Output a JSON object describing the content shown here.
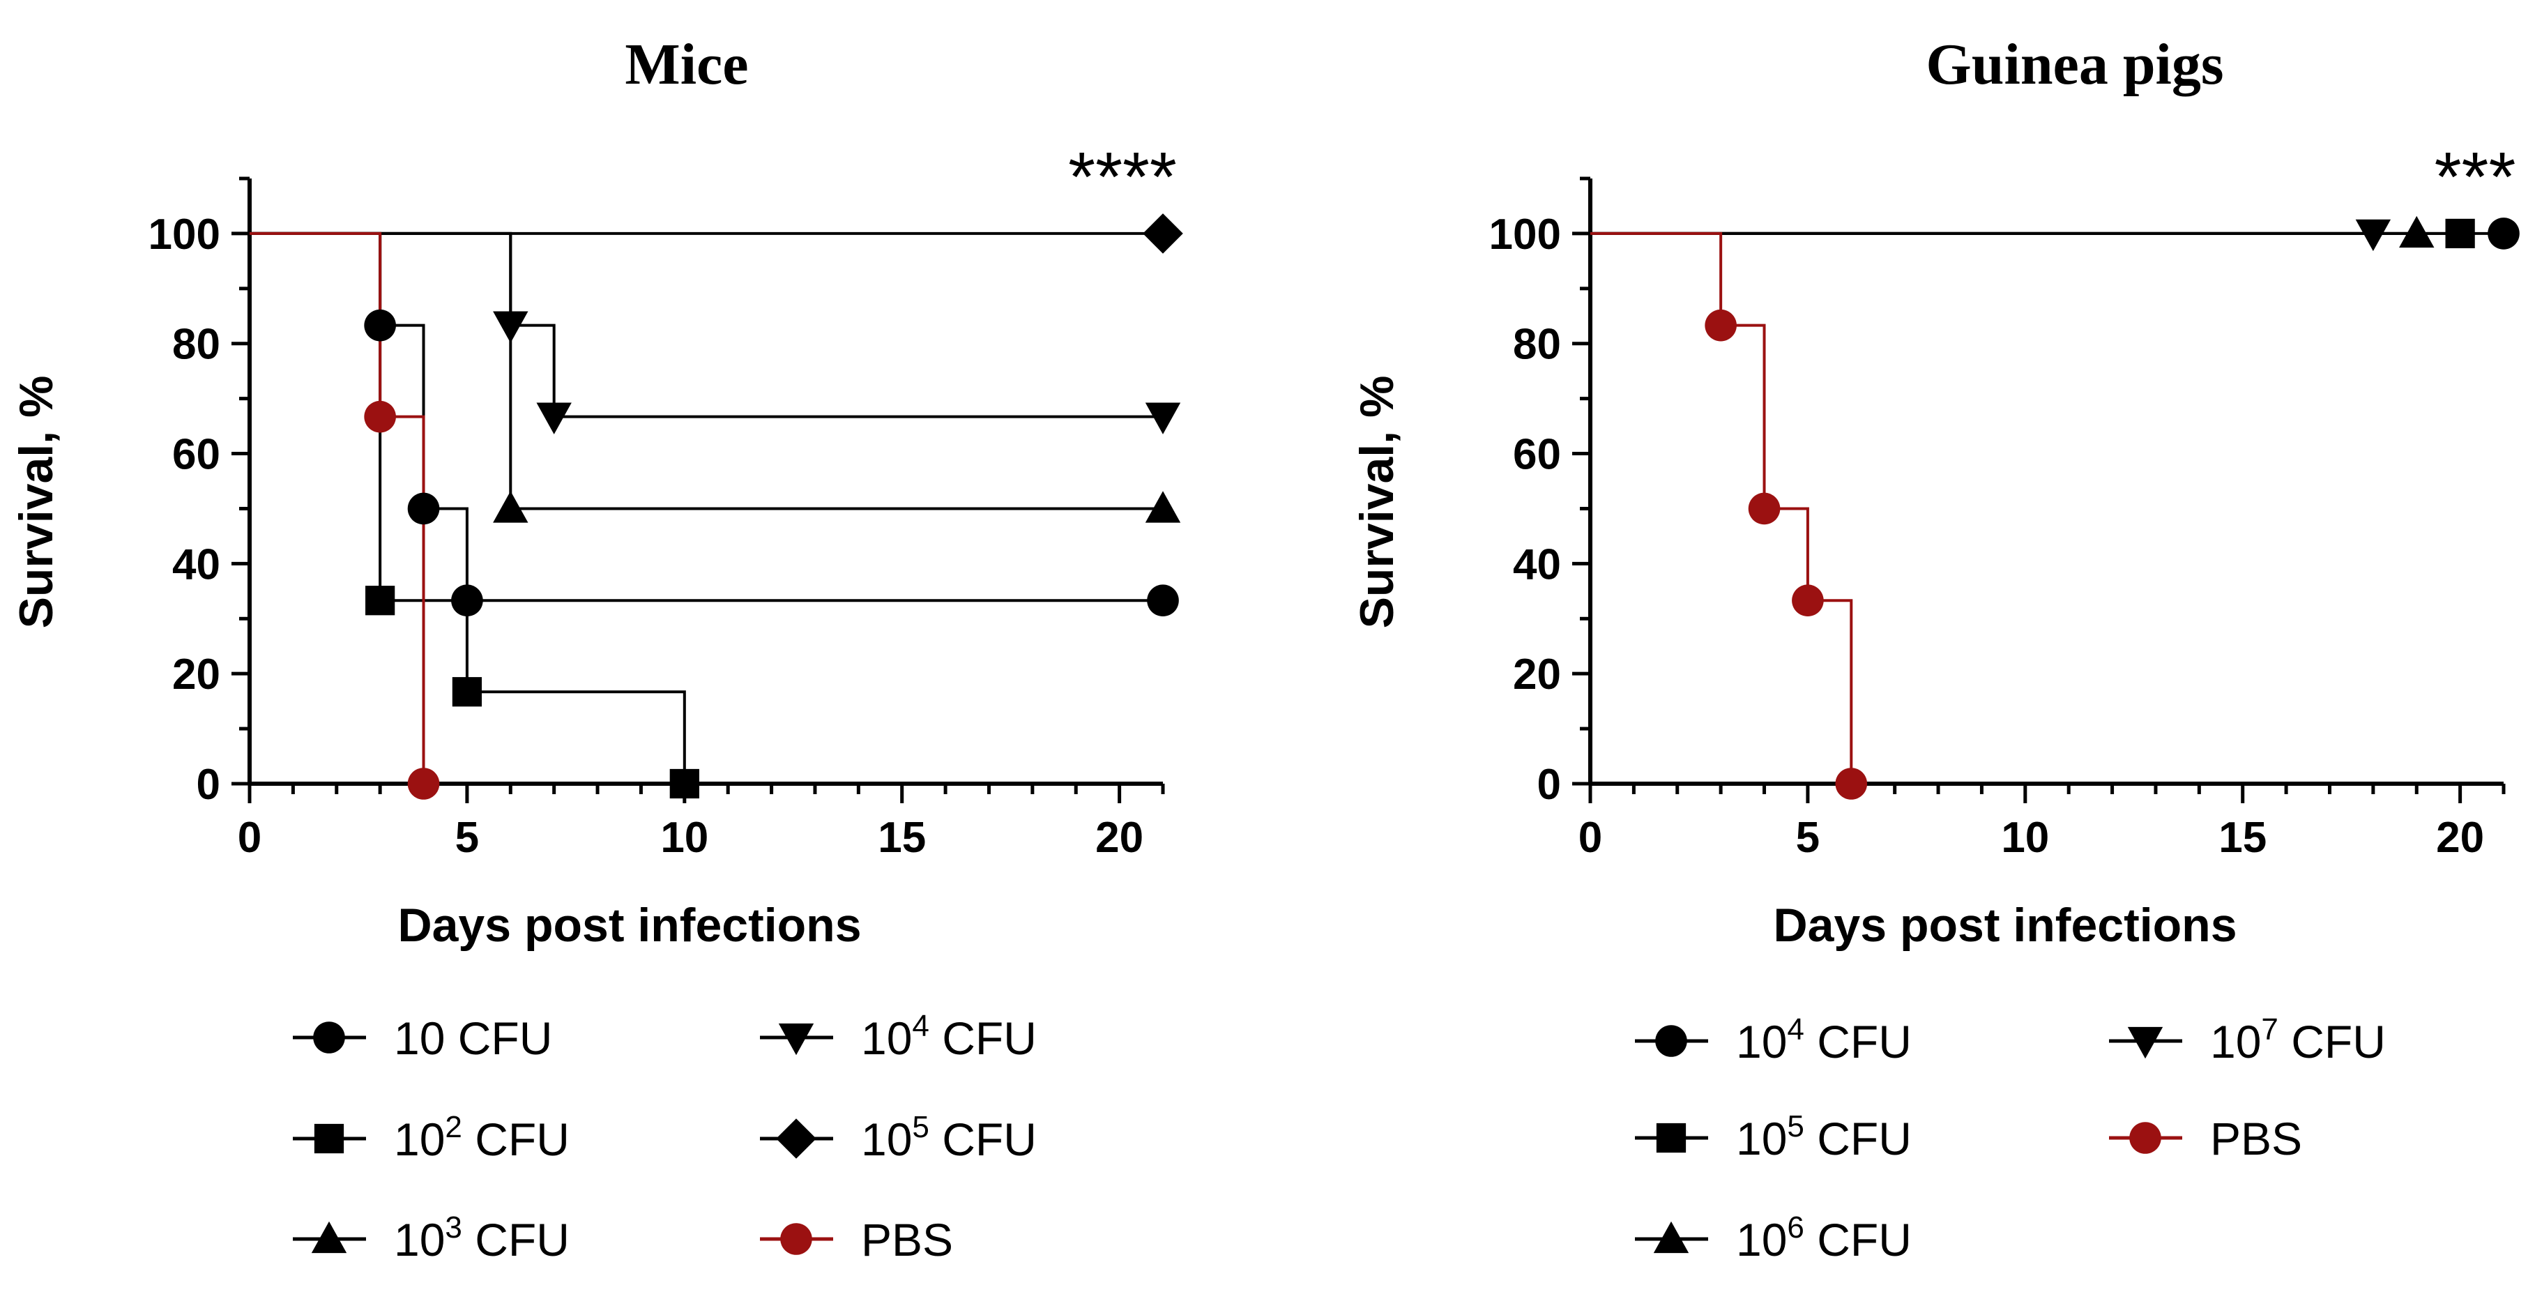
{
  "chart_data": [
    {
      "type": "line",
      "subtype": "kaplan-meier survival",
      "title": "Mice",
      "xlabel": "Days post infections",
      "ylabel": "Survival, %",
      "xlim": [
        0,
        21
      ],
      "ylim": [
        0,
        110
      ],
      "xticks": [
        0,
        5,
        10,
        15,
        20
      ],
      "yticks": [
        0,
        20,
        40,
        60,
        80,
        100
      ],
      "significance": "****",
      "series": [
        {
          "name": "10 CFU",
          "base": "10",
          "exp": "",
          "unit": " CFU",
          "marker": "circle",
          "color": "#000000",
          "steps": [
            [
              0,
              100
            ],
            [
              3,
              83.3
            ],
            [
              4,
              50
            ],
            [
              5,
              33.3
            ],
            [
              21,
              33.3
            ]
          ],
          "markers": [
            [
              3,
              83.3
            ],
            [
              4,
              50
            ],
            [
              5,
              33.3
            ],
            [
              21,
              33.3
            ]
          ]
        },
        {
          "name": "10^2 CFU",
          "base": "10",
          "exp": "2",
          "unit": " CFU",
          "marker": "square",
          "color": "#000000",
          "steps": [
            [
              0,
              100
            ],
            [
              3,
              33.3
            ],
            [
              5,
              16.7
            ],
            [
              10,
              0
            ]
          ],
          "markers": [
            [
              3,
              33.3
            ],
            [
              5,
              16.7
            ],
            [
              10,
              0
            ]
          ]
        },
        {
          "name": "10^3 CFU",
          "base": "10",
          "exp": "3",
          "unit": " CFU",
          "marker": "triangle-up",
          "color": "#000000",
          "steps": [
            [
              0,
              100
            ],
            [
              6,
              50
            ],
            [
              21,
              50
            ]
          ],
          "markers": [
            [
              6,
              50
            ],
            [
              21,
              50
            ]
          ]
        },
        {
          "name": "10^4 CFU",
          "base": "10",
          "exp": "4",
          "unit": " CFU",
          "marker": "triangle-down",
          "color": "#000000",
          "steps": [
            [
              0,
              100
            ],
            [
              6,
              83.3
            ],
            [
              7,
              66.7
            ],
            [
              21,
              66.7
            ]
          ],
          "markers": [
            [
              6,
              83.3
            ],
            [
              7,
              66.7
            ],
            [
              21,
              66.7
            ]
          ]
        },
        {
          "name": "10^5 CFU",
          "base": "10",
          "exp": "5",
          "unit": " CFU",
          "marker": "diamond",
          "color": "#000000",
          "steps": [
            [
              0,
              100
            ],
            [
              21,
              100
            ]
          ],
          "markers": [
            [
              21,
              100
            ]
          ]
        },
        {
          "name": "PBS",
          "base": "PBS",
          "exp": "",
          "unit": "",
          "marker": "circle",
          "color": "#9b1111",
          "steps": [
            [
              0,
              100
            ],
            [
              3,
              66.7
            ],
            [
              4,
              0
            ]
          ],
          "markers": [
            [
              3,
              66.7
            ],
            [
              4,
              0
            ]
          ]
        }
      ],
      "legend_layout": [
        [
          0,
          3
        ],
        [
          1,
          4
        ],
        [
          2,
          5
        ]
      ]
    },
    {
      "type": "line",
      "subtype": "kaplan-meier survival",
      "title": "Guinea pigs",
      "xlabel": "Days post infections",
      "ylabel": "Survival, %",
      "xlim": [
        0,
        21
      ],
      "ylim": [
        0,
        110
      ],
      "xticks": [
        0,
        5,
        10,
        15,
        20
      ],
      "yticks": [
        0,
        20,
        40,
        60,
        80,
        100
      ],
      "significance": "***",
      "series": [
        {
          "name": "10^4 CFU",
          "base": "10",
          "exp": "4",
          "unit": " CFU",
          "marker": "circle",
          "color": "#000000",
          "steps": [
            [
              0,
              100
            ],
            [
              21,
              100
            ]
          ],
          "markers": [
            [
              21,
              100
            ]
          ]
        },
        {
          "name": "10^5 CFU",
          "base": "10",
          "exp": "5",
          "unit": " CFU",
          "marker": "square",
          "color": "#000000",
          "steps": [
            [
              0,
              100
            ],
            [
              20,
              100
            ]
          ],
          "markers": [
            [
              20,
              100
            ]
          ]
        },
        {
          "name": "10^6 CFU",
          "base": "10",
          "exp": "6",
          "unit": " CFU",
          "marker": "triangle-up",
          "color": "#000000",
          "steps": [
            [
              0,
              100
            ],
            [
              19,
              100
            ]
          ],
          "markers": [
            [
              19,
              100
            ]
          ]
        },
        {
          "name": "10^7 CFU",
          "base": "10",
          "exp": "7",
          "unit": " CFU",
          "marker": "triangle-down",
          "color": "#000000",
          "steps": [
            [
              0,
              100
            ],
            [
              18,
              100
            ]
          ],
          "markers": [
            [
              18,
              100
            ]
          ]
        },
        {
          "name": "PBS",
          "base": "PBS",
          "exp": "",
          "unit": "",
          "marker": "circle",
          "color": "#9b1111",
          "steps": [
            [
              0,
              100
            ],
            [
              3,
              83.3
            ],
            [
              4,
              50
            ],
            [
              5,
              33.3
            ],
            [
              6,
              0
            ]
          ],
          "markers": [
            [
              3,
              83.3
            ],
            [
              4,
              50
            ],
            [
              5,
              33.3
            ],
            [
              6,
              0
            ]
          ]
        }
      ],
      "legend_layout": [
        [
          0,
          3
        ],
        [
          1,
          4
        ],
        [
          2,
          null
        ]
      ]
    }
  ]
}
